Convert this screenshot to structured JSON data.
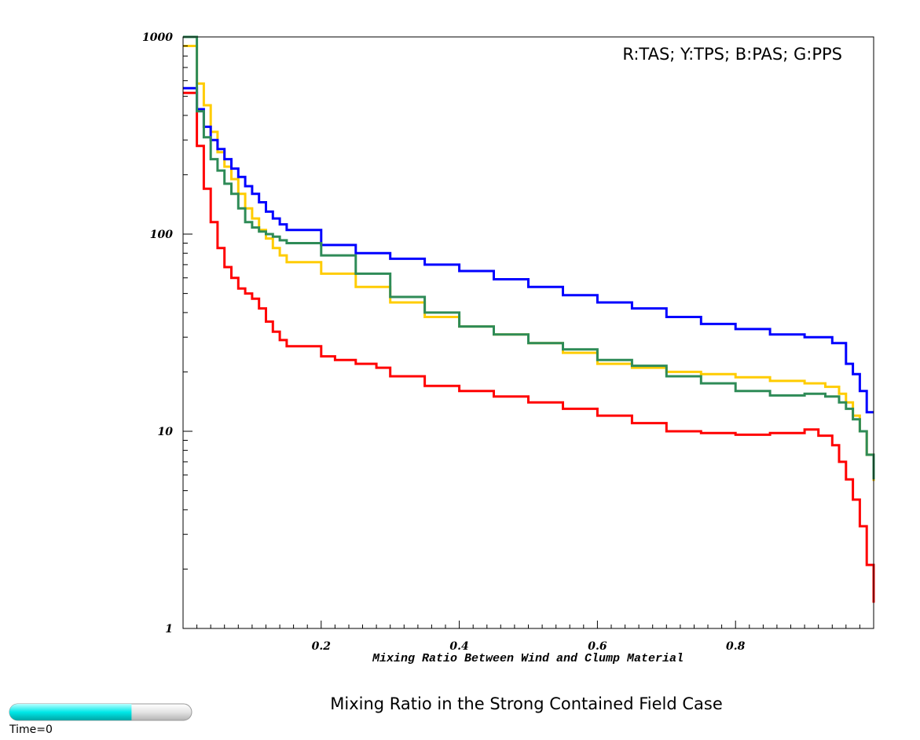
{
  "chart_data": {
    "type": "line",
    "step": true,
    "title": "Mixing Ratio in the Strong Contained Field Case",
    "xlabel": "Mixing Ratio Between Wind and Clump Material",
    "ylabel": "",
    "xlim": [
      0,
      1
    ],
    "ylim": [
      1,
      1000
    ],
    "yscale": "log",
    "x_ticks": [
      0.2,
      0.4,
      0.6,
      0.8
    ],
    "x_tick_labels": [
      "0.2",
      "0.4",
      "0.6",
      "0.8"
    ],
    "y_ticks": [
      1,
      10,
      100,
      1000
    ],
    "y_tick_labels": [
      "1",
      "10",
      "100",
      "1000"
    ],
    "grid": false,
    "legend_text": "R:TAS; Y:TPS; B:PAS; G:PPS",
    "legend_position": "top-right",
    "series": [
      {
        "color": "#ff0000",
        "x": [
          0.01,
          0.02,
          0.03,
          0.04,
          0.05,
          0.06,
          0.07,
          0.08,
          0.09,
          0.1,
          0.11,
          0.12,
          0.13,
          0.14,
          0.15,
          0.2,
          0.22,
          0.25,
          0.28,
          0.3,
          0.35,
          0.4,
          0.45,
          0.5,
          0.55,
          0.6,
          0.65,
          0.7,
          0.75,
          0.8,
          0.85,
          0.9,
          0.92,
          0.94,
          0.95,
          0.96,
          0.97,
          0.98,
          0.99,
          1.0
        ],
        "y": [
          520,
          280,
          170,
          115,
          85,
          68,
          60,
          53,
          50,
          47,
          42,
          36,
          32,
          29,
          27,
          24,
          23,
          22,
          21,
          19,
          17,
          16,
          15,
          14,
          13,
          12,
          11,
          10,
          9.8,
          9.6,
          9.8,
          10.2,
          9.5,
          8.5,
          7,
          5.7,
          4.5,
          3.3,
          2.1,
          1.35
        ]
      },
      {
        "color": "#ffcc00",
        "x": [
          0.01,
          0.02,
          0.03,
          0.04,
          0.05,
          0.06,
          0.07,
          0.08,
          0.09,
          0.1,
          0.11,
          0.12,
          0.13,
          0.14,
          0.15,
          0.2,
          0.25,
          0.3,
          0.35,
          0.4,
          0.45,
          0.5,
          0.55,
          0.6,
          0.65,
          0.7,
          0.75,
          0.8,
          0.85,
          0.9,
          0.93,
          0.95,
          0.96,
          0.97,
          0.98,
          0.99,
          1.0
        ],
        "y": [
          900,
          580,
          450,
          330,
          260,
          220,
          190,
          160,
          135,
          120,
          105,
          95,
          85,
          78,
          72,
          63,
          54,
          45,
          38,
          34,
          31,
          28,
          25,
          22,
          21,
          20,
          19.5,
          18.8,
          18,
          17.5,
          16.8,
          15.5,
          14,
          12,
          10,
          7.6,
          5.6
        ]
      },
      {
        "color": "#0000ff",
        "x": [
          0.01,
          0.02,
          0.03,
          0.04,
          0.05,
          0.06,
          0.07,
          0.08,
          0.09,
          0.1,
          0.11,
          0.12,
          0.13,
          0.14,
          0.15,
          0.2,
          0.25,
          0.3,
          0.35,
          0.4,
          0.45,
          0.5,
          0.55,
          0.6,
          0.65,
          0.7,
          0.75,
          0.8,
          0.85,
          0.9,
          0.94,
          0.96,
          0.97,
          0.98,
          0.99,
          1.0
        ],
        "y": [
          550,
          430,
          350,
          300,
          270,
          240,
          215,
          195,
          175,
          160,
          145,
          130,
          120,
          112,
          105,
          88,
          80,
          75,
          70,
          65,
          59,
          54,
          49,
          45,
          42,
          38,
          35,
          33,
          31,
          30,
          28,
          22,
          19.5,
          16,
          12.5,
          12.5
        ]
      },
      {
        "color": "#2e8b57",
        "x": [
          0.01,
          0.02,
          0.03,
          0.04,
          0.05,
          0.06,
          0.07,
          0.08,
          0.09,
          0.1,
          0.11,
          0.12,
          0.13,
          0.14,
          0.15,
          0.2,
          0.25,
          0.3,
          0.35,
          0.4,
          0.45,
          0.5,
          0.55,
          0.6,
          0.65,
          0.7,
          0.75,
          0.8,
          0.85,
          0.9,
          0.93,
          0.95,
          0.96,
          0.97,
          0.98,
          0.99,
          1.0
        ],
        "y": [
          1000,
          420,
          310,
          240,
          210,
          180,
          160,
          135,
          115,
          108,
          103,
          100,
          97,
          93,
          90,
          78,
          63,
          48,
          40,
          34,
          31,
          28,
          26,
          23,
          21.5,
          19,
          17.5,
          16,
          15.2,
          15.5,
          15,
          14,
          13,
          11.5,
          10,
          7.6,
          5.7
        ]
      }
    ]
  },
  "progress": {
    "fraction": 0.67,
    "fill_color": "#00ffff",
    "track_color": "#ececec",
    "label": "Time=0"
  }
}
